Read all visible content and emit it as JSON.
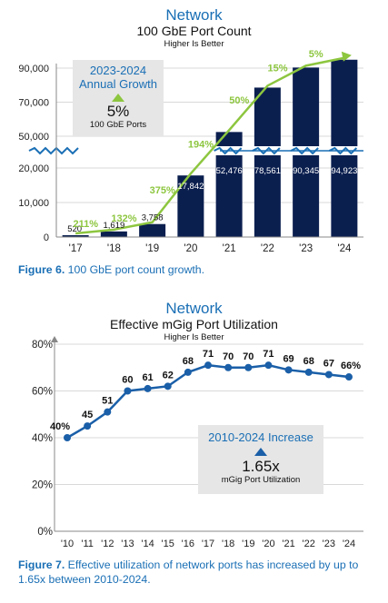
{
  "chart_data": [
    {
      "type": "bar",
      "title": "Network",
      "subtitle": "100 GbE Port Count",
      "note": "Higher Is Better",
      "categories": [
        "'17",
        "'18",
        "'19",
        "'20",
        "'21",
        "'22",
        "'23",
        "'24"
      ],
      "values": [
        520,
        1619,
        3758,
        17842,
        52476,
        78561,
        90345,
        94923
      ],
      "value_labels": [
        "520",
        "1,619",
        "3,758",
        "17,842",
        "52,476",
        "78,561",
        "90,345",
        "94,923"
      ],
      "growth_labels": [
        "211%",
        "132%",
        "375%",
        "194%",
        "50%",
        "15%",
        "5%"
      ],
      "y_ticks": [
        "0",
        "10,000",
        "20,000",
        "50,000",
        "70,000",
        "90,000"
      ],
      "axis_break": true,
      "ylim": [
        0,
        95000
      ],
      "bar_color": "#0b1f4f",
      "growth_color": "#8dc63f",
      "callout": {
        "heading": "2023-2024\nAnnual Growth",
        "value": "5%",
        "label": "100 GbE Ports"
      },
      "caption": {
        "figure": "Figure 6.",
        "text": " 100 GbE port count growth."
      }
    },
    {
      "type": "line",
      "title": "Network",
      "subtitle": "Effective mGig Port Utilization",
      "note": "Higher Is Better",
      "categories": [
        "'10",
        "'11",
        "'12",
        "'13",
        "'14",
        "'15",
        "'16",
        "'17",
        "'18",
        "'19",
        "'20",
        "'21",
        "'22",
        "'23",
        "'24"
      ],
      "values": [
        40,
        45,
        51,
        60,
        61,
        62,
        68,
        71,
        70,
        70,
        71,
        69,
        68,
        67,
        66
      ],
      "value_labels": [
        "40%",
        "45",
        "51",
        "60",
        "61",
        "62",
        "68",
        "71",
        "70",
        "70",
        "71",
        "69",
        "68",
        "67",
        "66%"
      ],
      "y_ticks": [
        "0%",
        "20%",
        "40%",
        "60%",
        "80%"
      ],
      "ylim": [
        0,
        80
      ],
      "line_color": "#1a5fa8",
      "callout": {
        "heading": "2010-2024 Increase",
        "value": "1.65x",
        "label": "mGig Port Utilization"
      },
      "caption": {
        "figure": "Figure 7.",
        "text": " Effective utilization of network ports has increased by up to 1.65x between 2010-2024."
      }
    }
  ]
}
